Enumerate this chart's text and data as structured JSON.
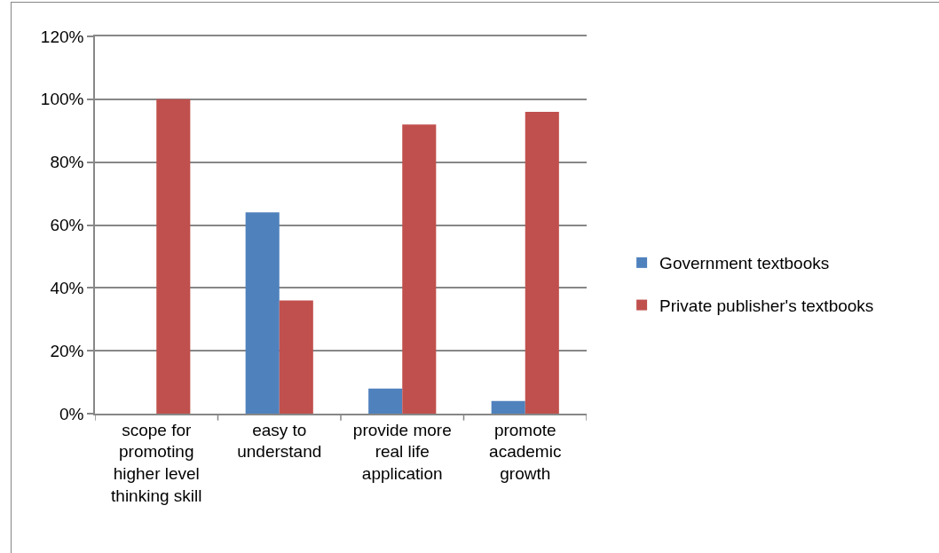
{
  "chart_data": {
    "type": "bar",
    "categories": [
      "scope for promoting higher level thinking skill",
      "easy to understand",
      "provide more real life application",
      "promote academic growth"
    ],
    "series": [
      {
        "name": "Government textbooks",
        "color": "#4f81bd",
        "values": [
          0,
          64,
          8,
          4
        ]
      },
      {
        "name": "Private publisher's textbooks",
        "color": "#c0504d",
        "values": [
          100,
          36,
          92,
          96
        ]
      }
    ],
    "ylim": [
      0,
      120
    ],
    "yticks": [
      {
        "value": 0,
        "label": "0%"
      },
      {
        "value": 20,
        "label": "20%"
      },
      {
        "value": 40,
        "label": "40%"
      },
      {
        "value": 60,
        "label": "60%"
      },
      {
        "value": 80,
        "label": "80%"
      },
      {
        "value": 100,
        "label": "100%"
      },
      {
        "value": 120,
        "label": "120%"
      }
    ],
    "grid": "y",
    "legend": "right"
  }
}
